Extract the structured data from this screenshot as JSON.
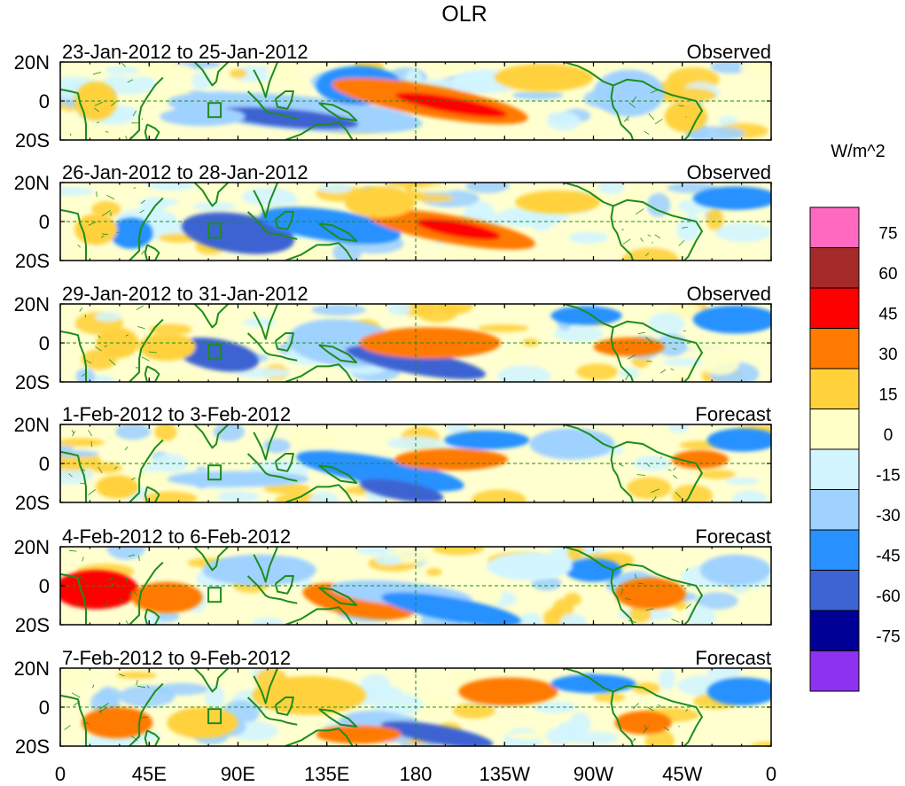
{
  "title": "OLR",
  "units": "W/m^2",
  "latitude_labels": [
    "20N",
    "0",
    "20S"
  ],
  "longitude_labels": [
    "0",
    "45E",
    "90E",
    "135E",
    "180",
    "135W",
    "90W",
    "45W",
    "0"
  ],
  "panels": [
    {
      "date_range": "23-Jan-2012 to 25-Jan-2012",
      "status": "Observed"
    },
    {
      "date_range": "26-Jan-2012 to 28-Jan-2012",
      "status": "Observed"
    },
    {
      "date_range": "29-Jan-2012 to 31-Jan-2012",
      "status": "Observed"
    },
    {
      "date_range": "1-Feb-2012 to 3-Feb-2012",
      "status": "Forecast"
    },
    {
      "date_range": "4-Feb-2012 to 6-Feb-2012",
      "status": "Forecast"
    },
    {
      "date_range": "7-Feb-2012 to 9-Feb-2012",
      "status": "Forecast"
    }
  ],
  "colorbar": {
    "levels": [
      "75",
      "60",
      "45",
      "30",
      "15",
      "0",
      "-15",
      "-30",
      "-45",
      "-60",
      "-75"
    ],
    "colors": [
      "#ff69c0",
      "#a52a2a",
      "#ff0000",
      "#ff7a00",
      "#ffd23c",
      "#ffffc8",
      "#d2f5ff",
      "#a0d2ff",
      "#2891ff",
      "#3c64d2",
      "#000096",
      "#8c32f0"
    ]
  },
  "map_colors": {
    "coast": "#1e8c1e",
    "grid": "#1e8c1e",
    "ocean_base": "#ffffd0"
  }
}
